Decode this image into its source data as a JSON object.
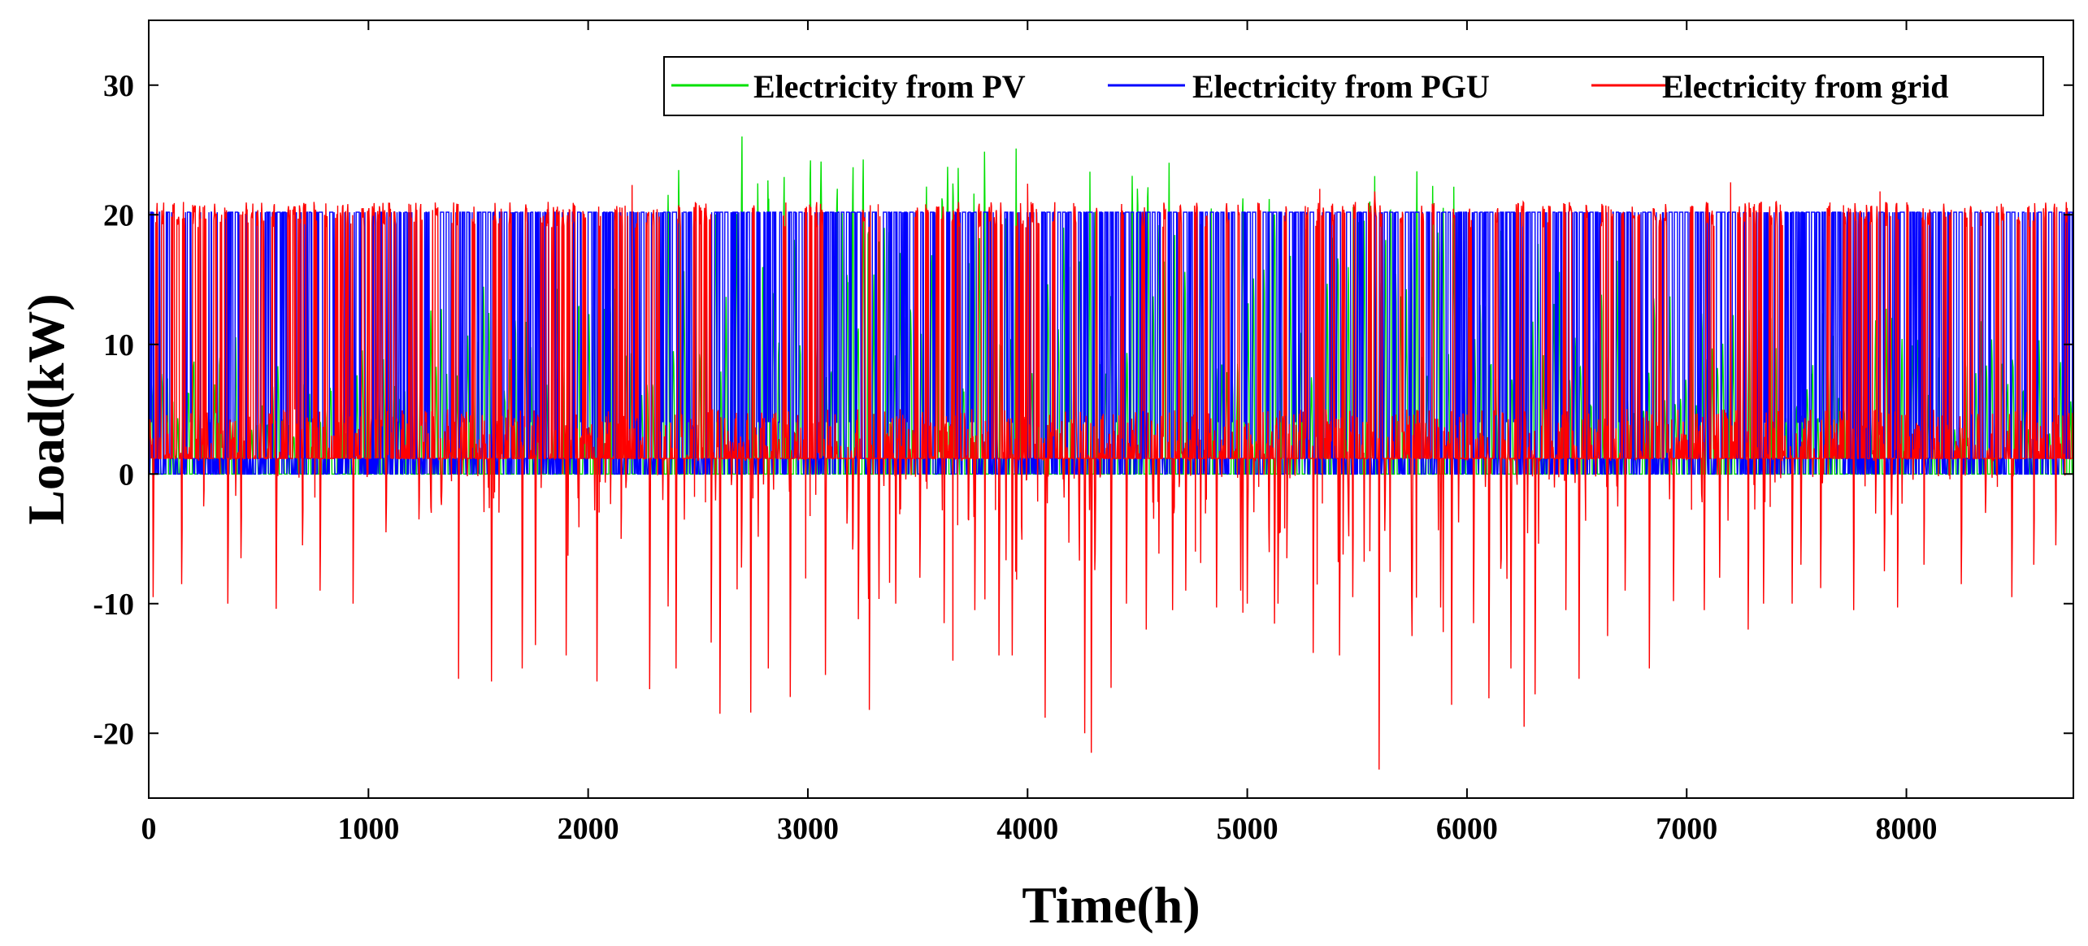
{
  "chart_data": {
    "type": "line",
    "title": "",
    "xlabel": "Time(h)",
    "ylabel": "Load(kW)",
    "xlim": [
      0,
      8760
    ],
    "ylim": [
      -25,
      35
    ],
    "xticks": [
      0,
      1000,
      2000,
      3000,
      4000,
      5000,
      6000,
      7000,
      8000
    ],
    "yticks": [
      -20,
      -10,
      0,
      10,
      20,
      30
    ],
    "legend_position": "top-right",
    "grid": false,
    "hours": 8760,
    "series": [
      {
        "name": "Electricity from PV",
        "color": "#00e000",
        "description_values": {
          "typical_daily_peak_range": [
            0,
            25.7
          ],
          "max": 25.7,
          "min": 0
        },
        "pattern": "daily solar bell curve, zero at night",
        "seasonal_peak_profile": [
          [
            0,
            8
          ],
          [
            500,
            10
          ],
          [
            1000,
            9
          ],
          [
            1500,
            13
          ],
          [
            2000,
            16
          ],
          [
            2500,
            22
          ],
          [
            3000,
            24
          ],
          [
            3500,
            23
          ],
          [
            4000,
            22
          ],
          [
            4500,
            23
          ],
          [
            5000,
            24
          ],
          [
            5500,
            23
          ],
          [
            6000,
            19
          ],
          [
            6500,
            15
          ],
          [
            7000,
            14
          ],
          [
            7500,
            12
          ],
          [
            8000,
            11
          ],
          [
            8760,
            9
          ]
        ]
      },
      {
        "name": "Electricity from PGU",
        "color": "#0000ff",
        "description_values": {
          "on_level": 20.2,
          "off_level": 0,
          "low_level": 4
        },
        "pattern": "on/off operation at rated 20.2 kW",
        "on_fraction_profile": [
          [
            0,
            0.35
          ],
          [
            1000,
            0.35
          ],
          [
            1500,
            0.55
          ],
          [
            2000,
            0.45
          ],
          [
            2500,
            0.6
          ],
          [
            3000,
            0.65
          ],
          [
            3500,
            0.6
          ],
          [
            4000,
            0.65
          ],
          [
            4500,
            0.6
          ],
          [
            5000,
            0.55
          ],
          [
            5500,
            0.55
          ],
          [
            6000,
            0.6
          ],
          [
            6500,
            0.5
          ],
          [
            7000,
            0.4
          ],
          [
            7500,
            0.35
          ],
          [
            8000,
            0.35
          ],
          [
            8760,
            0.35
          ]
        ]
      },
      {
        "name": "Electricity from grid",
        "color": "#ff0000",
        "description_values": {
          "max": 22.5,
          "min": -22.8,
          "typical_low_level": 1.2
        },
        "pattern": "imports up to ~21 kW, exports (negative) during sunny days",
        "negative_spike_days": [
          [
            20,
            -9.5
          ],
          [
            150,
            -8.5
          ],
          [
            250,
            -2.5
          ],
          [
            360,
            -10.0
          ],
          [
            420,
            -6.5
          ],
          [
            580,
            -10.4
          ],
          [
            700,
            -5.5
          ],
          [
            780,
            -9.0
          ],
          [
            930,
            -10.0
          ],
          [
            1080,
            -4.5
          ],
          [
            1230,
            -3.5
          ],
          [
            1410,
            -15.8
          ],
          [
            1560,
            -16.0
          ],
          [
            1700,
            -15.0
          ],
          [
            1760,
            -13.2
          ],
          [
            1900,
            -14.0
          ],
          [
            2040,
            -16.0
          ],
          [
            2150,
            -5.0
          ],
          [
            2280,
            -16.6
          ],
          [
            2400,
            -15.0
          ],
          [
            2560,
            -13.0
          ],
          [
            2600,
            -18.5
          ],
          [
            2740,
            -18.4
          ],
          [
            2820,
            -15.0
          ],
          [
            2920,
            -17.2
          ],
          [
            3080,
            -15.5
          ],
          [
            3230,
            -11.2
          ],
          [
            3280,
            -18.2
          ],
          [
            3400,
            -10.0
          ],
          [
            3510,
            -8.0
          ],
          [
            3620,
            -11.5
          ],
          [
            3760,
            -10.5
          ],
          [
            3870,
            -14.0
          ],
          [
            3930,
            -14.0
          ],
          [
            4080,
            -18.8
          ],
          [
            4260,
            -20.0
          ],
          [
            4290,
            -21.5
          ],
          [
            4380,
            -16.5
          ],
          [
            4450,
            -10.0
          ],
          [
            4540,
            -12.0
          ],
          [
            4660,
            -10.5
          ],
          [
            4720,
            -9.0
          ],
          [
            4860,
            -10.3
          ],
          [
            4970,
            -9.0
          ],
          [
            5000,
            -10.0
          ],
          [
            5140,
            -10.0
          ],
          [
            5180,
            -6.5
          ],
          [
            5300,
            -13.8
          ],
          [
            5420,
            -14.0
          ],
          [
            5480,
            -9.5
          ],
          [
            5600,
            -22.8
          ],
          [
            5750,
            -12.5
          ],
          [
            5880,
            -10.3
          ],
          [
            5930,
            -17.8
          ],
          [
            6030,
            -11.5
          ],
          [
            6100,
            -17.3
          ],
          [
            6200,
            -15.0
          ],
          [
            6260,
            -19.5
          ],
          [
            6310,
            -17.0
          ],
          [
            6450,
            -10.5
          ],
          [
            6510,
            -15.8
          ],
          [
            6640,
            -12.5
          ],
          [
            6720,
            -9.0
          ],
          [
            6830,
            -15.0
          ],
          [
            6940,
            -9.8
          ],
          [
            7080,
            -10.5
          ],
          [
            7150,
            -8.0
          ],
          [
            7280,
            -12.0
          ],
          [
            7350,
            -10.0
          ],
          [
            7480,
            -10.0
          ],
          [
            7520,
            -7.0
          ],
          [
            7610,
            -8.8
          ],
          [
            7760,
            -10.5
          ],
          [
            7900,
            -7.5
          ],
          [
            7960,
            -10.3
          ],
          [
            8080,
            -7.0
          ],
          [
            8250,
            -8.5
          ],
          [
            8360,
            -3.0
          ],
          [
            8480,
            -9.5
          ],
          [
            8580,
            -7.0
          ],
          [
            8680,
            -5.5
          ]
        ]
      }
    ]
  }
}
